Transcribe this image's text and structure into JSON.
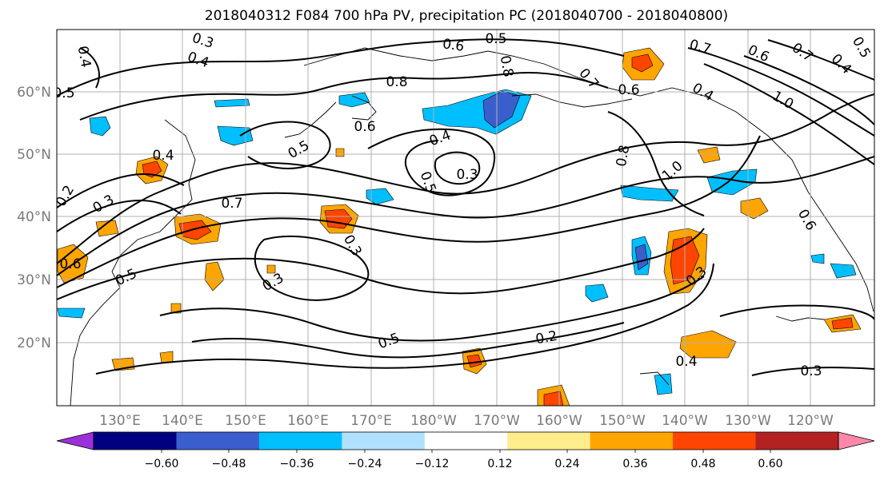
{
  "title": "2018040312 F084 700 hPa PV, precipitation PC (2018040700 - 2018040800)",
  "lat_ticks": [
    "60°N",
    "50°N",
    "40°N",
    "30°N",
    "20°N"
  ],
  "lon_ticks": [
    "130°E",
    "140°E",
    "150°E",
    "160°E",
    "170°E",
    "180°W",
    "170°W",
    "160°W",
    "150°W",
    "140°W",
    "130°W",
    "120°W"
  ],
  "colorbar": {
    "tick_labels": [
      "−0.60",
      "−0.48",
      "−0.36",
      "−0.24",
      "−0.12",
      "0.12",
      "0.24",
      "0.36",
      "0.48",
      "0.60"
    ],
    "colors": [
      "#9b30d9",
      "#000080",
      "#3a5fcd",
      "#00bfff",
      "#b0e0ff",
      "#ffffff",
      "#ffec8b",
      "#ffa500",
      "#ff4500",
      "#b22222",
      "#ff88aa"
    ]
  },
  "contour_labels": [
    "0.3",
    "0.4",
    "0.4",
    "0.5",
    "0.6",
    "0.5",
    "0.8",
    "0.8",
    "0.6",
    "0.7",
    "0.6",
    "0.7",
    "0.4",
    "1.0",
    "0.5",
    "0.6",
    "0.7",
    "0.4",
    "0.3",
    "0.5",
    "0.8",
    "1.0",
    "0.4",
    "0.3",
    "0.2",
    "0.6",
    "0.7",
    "0.5",
    "0.3",
    "0.3",
    "0.5",
    "0.2",
    "0.4",
    "0.3",
    "0.3",
    "0.5",
    "0.6",
    "0.4"
  ]
}
